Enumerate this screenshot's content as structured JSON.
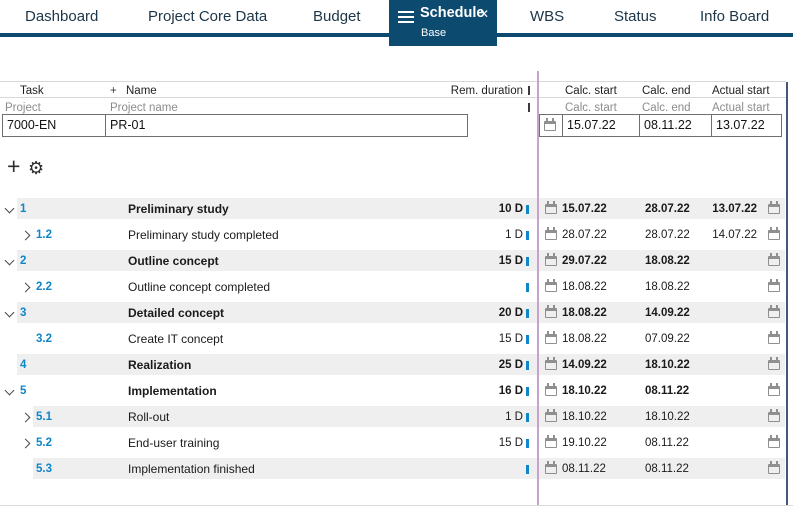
{
  "tabs": {
    "items": [
      {
        "label": "Dashboard"
      },
      {
        "label": "Project Core Data"
      },
      {
        "label": "Budget"
      },
      {
        "label": "Schedule",
        "active": true,
        "sublabel": "Base"
      },
      {
        "label": "WBS"
      },
      {
        "label": "Status"
      },
      {
        "label": "Info Board"
      }
    ],
    "active_tab_icons": [
      "hamburger-icon",
      "close-icon"
    ]
  },
  "colors": {
    "navy_accent": "#0d4a70",
    "task_number_blue": "#0f86c8",
    "row_stripe_gray": "#efefef",
    "splitter_purple": "#c4a4cf",
    "right_divider_navy": "#44567e",
    "subheader_gray": "#8c8c8c"
  },
  "table": {
    "header": {
      "task": "Task",
      "name_plus": "+",
      "name": "Name",
      "rem_duration": "Rem. duration",
      "calc_start": "Calc. start",
      "calc_end": "Calc. end",
      "actual_start": "Actual start"
    },
    "subheader": {
      "project": "Project",
      "project_name": "Project name",
      "calc_start": "Calc. start",
      "calc_end": "Calc. end",
      "actual_start": "Actual start"
    },
    "project_row": {
      "id": "7000-EN",
      "name": "PR-01",
      "calc_start": "15.07.22",
      "calc_end": "08.11.22",
      "actual_start": "13.07.22"
    }
  },
  "toolbar": {
    "add_icon": "+",
    "settings_icon": "⚙"
  },
  "rows": [
    {
      "num": "1",
      "level": 1,
      "chevron": "down",
      "bold": true,
      "name": "Preliminary study",
      "duration": "10 D",
      "calc_start": "15.07.22",
      "calc_end": "28.07.22",
      "actual_start": "13.07.22"
    },
    {
      "num": "1.2",
      "level": 2,
      "chevron": "right",
      "bold": false,
      "name": "Preliminary study completed",
      "duration": "1 D",
      "calc_start": "28.07.22",
      "calc_end": "28.07.22",
      "actual_start": "14.07.22"
    },
    {
      "num": "2",
      "level": 1,
      "chevron": "down",
      "bold": true,
      "name": "Outline concept",
      "duration": "15 D",
      "calc_start": "29.07.22",
      "calc_end": "18.08.22",
      "actual_start": ""
    },
    {
      "num": "2.2",
      "level": 2,
      "chevron": "right",
      "bold": false,
      "name": "Outline concept completed",
      "duration": "",
      "calc_start": "18.08.22",
      "calc_end": "18.08.22",
      "actual_start": ""
    },
    {
      "num": "3",
      "level": 1,
      "chevron": "down",
      "bold": true,
      "name": "Detailed concept",
      "duration": "20 D",
      "calc_start": "18.08.22",
      "calc_end": "14.09.22",
      "actual_start": ""
    },
    {
      "num": "3.2",
      "level": 2,
      "chevron": "none",
      "bold": false,
      "name": "Create IT concept",
      "duration": "15 D",
      "calc_start": "18.08.22",
      "calc_end": "07.09.22",
      "actual_start": ""
    },
    {
      "num": "4",
      "level": 1,
      "chevron": "none",
      "bold": true,
      "name": "Realization",
      "duration": "25 D",
      "calc_start": "14.09.22",
      "calc_end": "18.10.22",
      "actual_start": ""
    },
    {
      "num": "5",
      "level": 1,
      "chevron": "down",
      "bold": true,
      "name": "Implementation",
      "duration": "16 D",
      "calc_start": "18.10.22",
      "calc_end": "08.11.22",
      "actual_start": ""
    },
    {
      "num": "5.1",
      "level": 2,
      "chevron": "right",
      "bold": false,
      "name": "Roll-out",
      "duration": "1 D",
      "calc_start": "18.10.22",
      "calc_end": "18.10.22",
      "actual_start": ""
    },
    {
      "num": "5.2",
      "level": 2,
      "chevron": "right",
      "bold": false,
      "name": "End-user training",
      "duration": "15 D",
      "calc_start": "19.10.22",
      "calc_end": "08.11.22",
      "actual_start": ""
    },
    {
      "num": "5.3",
      "level": 2,
      "chevron": "none",
      "bold": false,
      "name": "Implementation finished",
      "duration": "",
      "calc_start": "08.11.22",
      "calc_end": "08.11.22",
      "actual_start": ""
    }
  ]
}
